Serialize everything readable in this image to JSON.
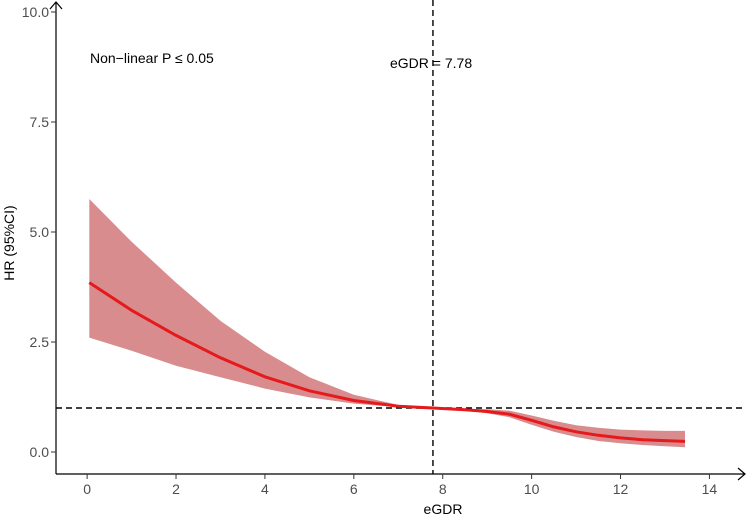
{
  "chart_data": {
    "type": "line",
    "title": "",
    "xlabel": "eGDR",
    "ylabel": "HR (95%CI)",
    "xlim": [
      -0.7,
      14.8
    ],
    "ylim": [
      -0.5,
      10.0
    ],
    "x_ticks": [
      0,
      2,
      4,
      6,
      8,
      10,
      12,
      14
    ],
    "x_tick_labels": [
      "0",
      "2",
      "4",
      "6",
      "8",
      "10",
      "12",
      "14"
    ],
    "y_ticks": [
      0,
      2.5,
      5,
      7.5,
      10
    ],
    "y_tick_labels": [
      "0.0",
      "2.5",
      "5.0",
      "7.5",
      "10.0"
    ],
    "reference_lines": {
      "vertical_x": 7.78,
      "horizontal_y": 1.0
    },
    "annotations": {
      "nonlinear": "Non−linear P ≤ 0.05",
      "cutoff": "eGDR = 7.78"
    },
    "colors": {
      "line": "#e41a1c",
      "band": "#d98c8e"
    },
    "series": [
      {
        "x": [
          0.05,
          1,
          2,
          3,
          4,
          5,
          6,
          7,
          7.78,
          8.5,
          9,
          9.5,
          10,
          10.5,
          11,
          11.5,
          12,
          12.5,
          13,
          13.45
        ],
        "y": [
          3.85,
          3.22,
          2.65,
          2.14,
          1.71,
          1.39,
          1.17,
          1.04,
          1.0,
          0.96,
          0.92,
          0.86,
          0.72,
          0.57,
          0.46,
          0.38,
          0.32,
          0.28,
          0.26,
          0.24
        ],
        "lower": [
          2.6,
          2.3,
          1.96,
          1.7,
          1.44,
          1.24,
          1.1,
          1.02,
          1.0,
          0.95,
          0.88,
          0.79,
          0.62,
          0.46,
          0.34,
          0.25,
          0.2,
          0.16,
          0.13,
          0.11
        ],
        "upper": [
          5.75,
          4.78,
          3.85,
          2.98,
          2.28,
          1.7,
          1.3,
          1.07,
          1.0,
          0.98,
          0.97,
          0.94,
          0.83,
          0.71,
          0.61,
          0.55,
          0.51,
          0.49,
          0.48,
          0.48
        ]
      }
    ]
  }
}
